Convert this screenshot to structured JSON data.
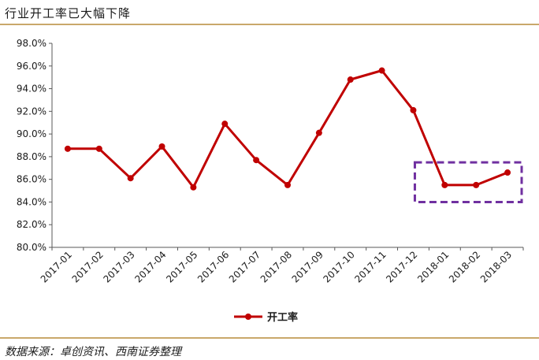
{
  "header": {
    "title": "行业开工率已大幅下降"
  },
  "footer": {
    "source": "数据来源：卓创资讯、西南证券整理"
  },
  "colors": {
    "series": "#c00000",
    "highlight_box": "#7030a0",
    "rule": "#c9a86b"
  },
  "chart_data": {
    "type": "line",
    "categories": [
      "2017-01",
      "2017-02",
      "2017-03",
      "2017-04",
      "2017-05",
      "2017-06",
      "2017-07",
      "2017-08",
      "2017-09",
      "2017-10",
      "2017-11",
      "2017-12",
      "2018-01",
      "2018-02",
      "2018-03"
    ],
    "series": [
      {
        "name": "开工率",
        "values": [
          88.7,
          88.7,
          86.1,
          88.9,
          85.3,
          90.9,
          87.7,
          85.5,
          90.1,
          94.8,
          95.6,
          92.1,
          85.5,
          85.5,
          86.6
        ]
      }
    ],
    "ylim": [
      80,
      98
    ],
    "yticks": [
      "80.0%",
      "82.0%",
      "84.0%",
      "86.0%",
      "88.0%",
      "90.0%",
      "92.0%",
      "94.0%",
      "96.0%",
      "98.0%"
    ],
    "legend": "bottom",
    "grid": false,
    "highlight": {
      "categories": [
        "2018-01",
        "2018-03"
      ],
      "ylim": [
        84,
        87.5
      ]
    }
  }
}
